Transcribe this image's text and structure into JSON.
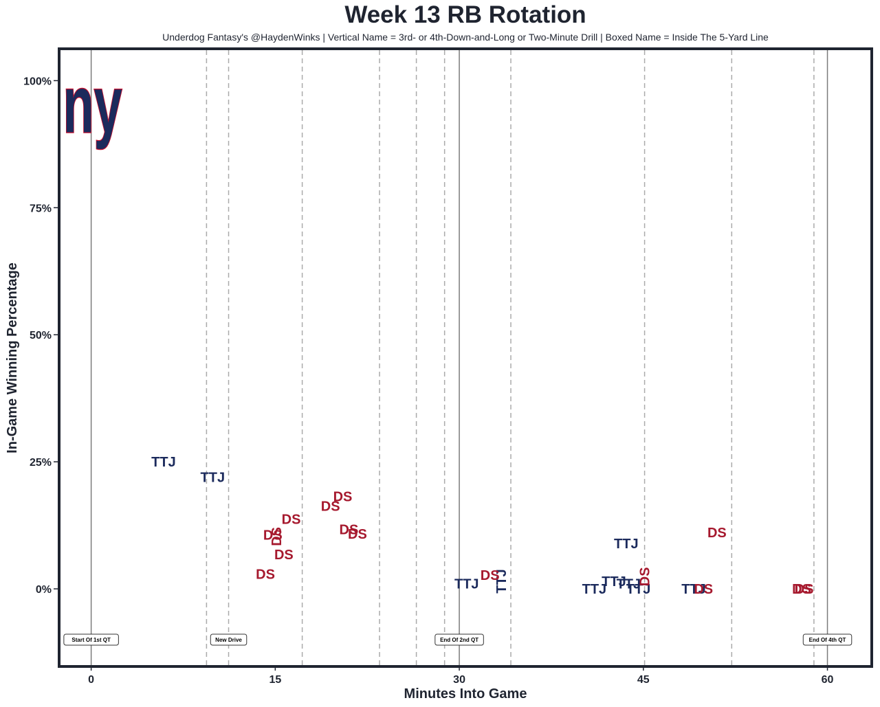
{
  "chart_data": {
    "type": "scatter",
    "title": "Week 13 RB Rotation",
    "subtitle": "Underdog Fantasy's @HaydenWinks | Vertical Name = 3rd- or 4th-Down-and-Long or Two-Minute Drill | Boxed Name = Inside The 5-Yard Line",
    "xlabel": "Minutes Into Game",
    "ylabel": "In-Game Winning Percentage",
    "xlim": [
      -2.5,
      63.5
    ],
    "ylim": [
      -15,
      106
    ],
    "xticks": [
      0,
      15,
      30,
      45,
      60
    ],
    "xtick_labels": [
      "0",
      "15",
      "30",
      "45",
      "60"
    ],
    "yticks": [
      0,
      25,
      50,
      75,
      100
    ],
    "ytick_labels": [
      "0%",
      "25%",
      "50%",
      "75%",
      "100%"
    ],
    "grid": false,
    "logo": {
      "text": "ny",
      "fill": "#1b2a5c",
      "stroke": "#c8102e"
    },
    "quarter_lines": [
      0,
      30,
      60
    ],
    "drive_lines": [
      9.4,
      11.2,
      17.2,
      23.5,
      26.5,
      28.8,
      34.2,
      45.1,
      52.2,
      58.9
    ],
    "annotations": [
      {
        "x": 0,
        "y": -10,
        "text": "Start Of 1st QT"
      },
      {
        "x": 11.2,
        "y": -10,
        "text": "New Drive"
      },
      {
        "x": 30,
        "y": -10,
        "text": "End Of 2nd QT"
      },
      {
        "x": 60,
        "y": -10,
        "text": "End Of 4th QT"
      }
    ],
    "colors": {
      "TTJ": "#1b2a5c",
      "DS": "#a6192e"
    },
    "series": [
      {
        "name": "TTJ",
        "points": [
          {
            "x": 5.9,
            "y": 25,
            "vertical": false
          },
          {
            "x": 9.9,
            "y": 22,
            "vertical": false
          },
          {
            "x": 30.6,
            "y": 1,
            "vertical": false
          },
          {
            "x": 33.4,
            "y": 1.5,
            "vertical": true
          },
          {
            "x": 41.0,
            "y": 0,
            "vertical": false
          },
          {
            "x": 42.6,
            "y": 1.5,
            "vertical": false
          },
          {
            "x": 43.6,
            "y": 8.9,
            "vertical": false
          },
          {
            "x": 43.8,
            "y": 1,
            "vertical": false
          },
          {
            "x": 44.6,
            "y": 0,
            "vertical": false
          },
          {
            "x": 49.1,
            "y": 0,
            "vertical": false
          }
        ]
      },
      {
        "name": "DS",
        "points": [
          {
            "x": 14.2,
            "y": 2.9,
            "vertical": false
          },
          {
            "x": 14.8,
            "y": 10.6,
            "vertical": false
          },
          {
            "x": 15.1,
            "y": 10.3,
            "vertical": true
          },
          {
            "x": 15.7,
            "y": 6.8,
            "vertical": false
          },
          {
            "x": 16.3,
            "y": 13.7,
            "vertical": false
          },
          {
            "x": 19.5,
            "y": 16.3,
            "vertical": false
          },
          {
            "x": 20.5,
            "y": 18.2,
            "vertical": false
          },
          {
            "x": 21.0,
            "y": 11.7,
            "vertical": false
          },
          {
            "x": 21.7,
            "y": 10.8,
            "vertical": false
          },
          {
            "x": 32.5,
            "y": 2.7,
            "vertical": false
          },
          {
            "x": 45.1,
            "y": 2.4,
            "vertical": true
          },
          {
            "x": 49.9,
            "y": 0,
            "vertical": false
          },
          {
            "x": 51.0,
            "y": 11.1,
            "vertical": false
          },
          {
            "x": 57.9,
            "y": 0,
            "vertical": false
          },
          {
            "x": 58.1,
            "y": 0,
            "vertical": false
          }
        ]
      }
    ]
  }
}
